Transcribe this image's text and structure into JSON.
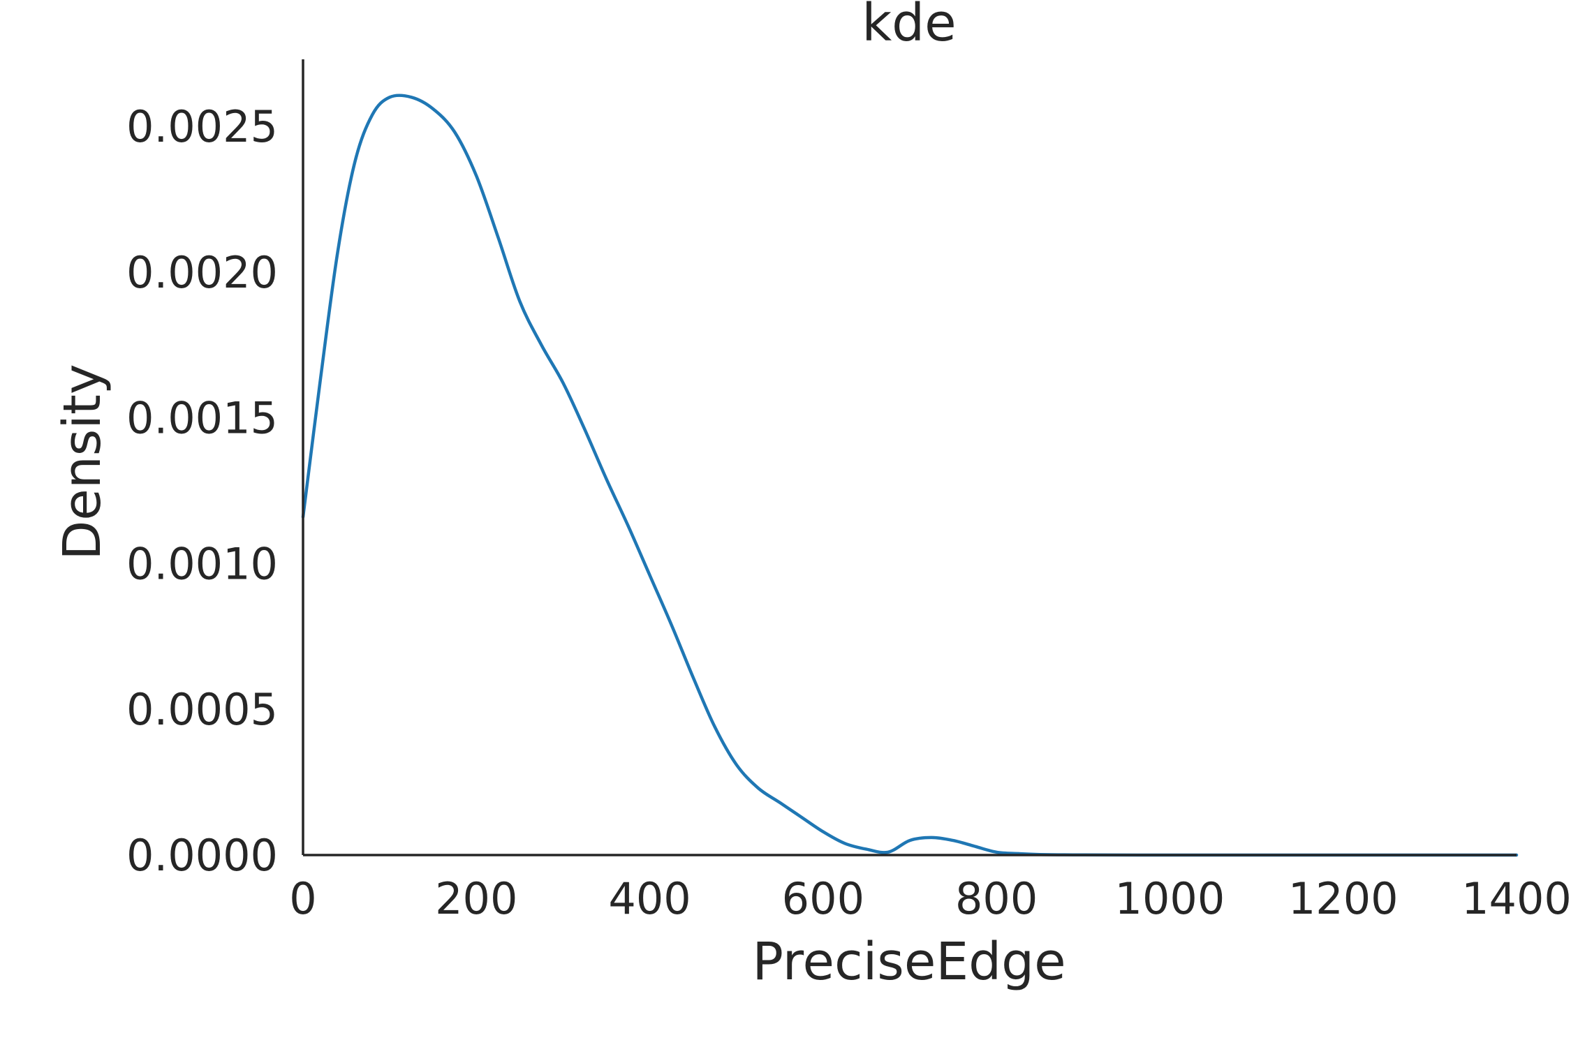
{
  "chart_data": {
    "type": "line",
    "title": "kde",
    "xlabel": "PreciseEdge",
    "ylabel": "Density",
    "xlim": [
      0,
      1400
    ],
    "ylim": [
      0,
      0.00273
    ],
    "xticks": [
      0,
      200,
      400,
      600,
      800,
      1000,
      1200,
      1400
    ],
    "xtick_labels": [
      "0",
      "200",
      "400",
      "600",
      "800",
      "1000",
      "1200",
      "1400"
    ],
    "yticks": [
      0,
      0.0005,
      0.001,
      0.0015,
      0.002,
      0.0025
    ],
    "ytick_labels": [
      "0.0000",
      "0.0005",
      "0.0010",
      "0.0015",
      "0.0020",
      "0.0025"
    ],
    "grid": false,
    "series": [
      {
        "color": "#1f77b4",
        "x": [
          0,
          20,
          40,
          60,
          80,
          100,
          125,
          150,
          175,
          200,
          225,
          250,
          275,
          300,
          325,
          350,
          375,
          400,
          425,
          450,
          475,
          500,
          525,
          550,
          575,
          600,
          625,
          650,
          675,
          700,
          725,
          750,
          775,
          800,
          825,
          850,
          900,
          1000,
          1100,
          1200,
          1300,
          1400
        ],
        "y": [
          0.00116,
          0.00163,
          0.00207,
          0.00238,
          0.00254,
          0.0026,
          0.0026,
          0.00256,
          0.00248,
          0.00233,
          0.00212,
          0.0019,
          0.00175,
          0.00162,
          0.00146,
          0.00129,
          0.00113,
          0.00096,
          0.00079,
          0.00061,
          0.00044,
          0.00031,
          0.00023,
          0.00018,
          0.00013,
          8e-05,
          4e-05,
          2e-05,
          1e-05,
          5e-05,
          6e-05,
          5e-05,
          3e-05,
          1e-05,
          5e-06,
          2e-06,
          5e-07,
          0,
          0,
          0,
          0,
          0
        ]
      }
    ]
  }
}
